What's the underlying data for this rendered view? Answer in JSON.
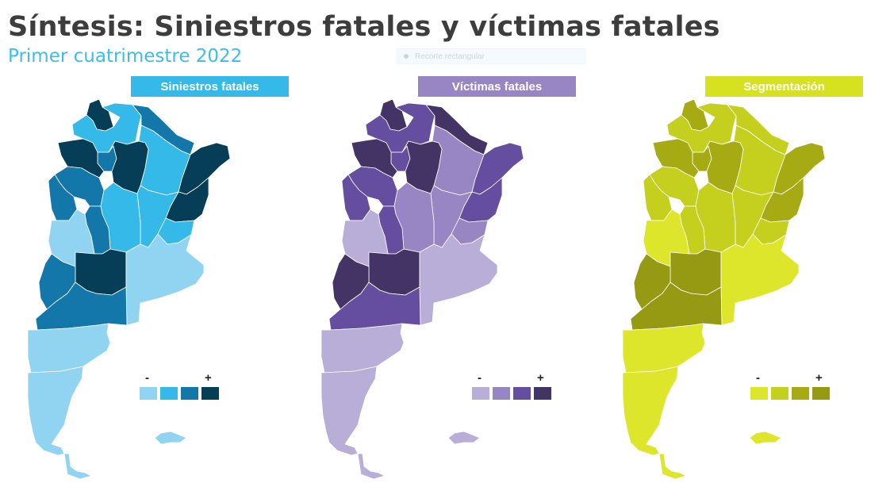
{
  "header": {
    "title": "Síntesis: Siniestros fatales y víctimas fatales",
    "subtitle": "Primer cuatrimestre 2022",
    "snip_label": "Recorte rectangular"
  },
  "panels": [
    {
      "label": "Siniestros fatales",
      "header_color": "#35b9e9",
      "palette": [
        "#90d4f1",
        "#35b9e9",
        "#1378a9",
        "#063e58"
      ],
      "legend_minus": "-",
      "legend_plus": "+"
    },
    {
      "label": "Víctimas fatales",
      "header_color": "#9886c4",
      "palette": [
        "#b8aed7",
        "#9886c4",
        "#654ea0",
        "#433465"
      ],
      "legend_minus": "-",
      "legend_plus": "+"
    },
    {
      "label": "Segmentación",
      "header_color": "#d6e11f",
      "palette": [
        "#dde62a",
        "#c4cf1e",
        "#a6ab14",
        "#969912"
      ],
      "legend_minus": "-",
      "legend_plus": "+"
    }
  ],
  "map_data": {
    "provinces": [
      {
        "name": "Jujuy",
        "levels": [
          3,
          3,
          2
        ]
      },
      {
        "name": "Salta",
        "levels": [
          1,
          2,
          1
        ]
      },
      {
        "name": "Formosa",
        "levels": [
          2,
          3,
          1
        ]
      },
      {
        "name": "Misiones",
        "levels": [
          3,
          2,
          2
        ]
      },
      {
        "name": "Chaco",
        "levels": [
          1,
          1,
          1
        ]
      },
      {
        "name": "Tucumán",
        "levels": [
          2,
          2,
          2
        ]
      },
      {
        "name": "Catamarca",
        "levels": [
          3,
          3,
          2
        ]
      },
      {
        "name": "Santiago del Estero",
        "levels": [
          3,
          3,
          2
        ]
      },
      {
        "name": "Corrientes",
        "levels": [
          3,
          2,
          2
        ]
      },
      {
        "name": "Santa Fe",
        "levels": [
          1,
          1,
          1
        ]
      },
      {
        "name": "La Rioja",
        "levels": [
          2,
          2,
          1
        ]
      },
      {
        "name": "San Juan",
        "levels": [
          2,
          2,
          1
        ]
      },
      {
        "name": "Córdoba",
        "levels": [
          1,
          1,
          1
        ]
      },
      {
        "name": "Entre Ríos",
        "levels": [
          1,
          1,
          1
        ]
      },
      {
        "name": "San Luis",
        "levels": [
          2,
          2,
          1
        ]
      },
      {
        "name": "Mendoza",
        "levels": [
          0,
          0,
          0
        ]
      },
      {
        "name": "La Pampa",
        "levels": [
          3,
          3,
          3
        ]
      },
      {
        "name": "Buenos Aires",
        "levels": [
          0,
          0,
          0
        ]
      },
      {
        "name": "Neuquén",
        "levels": [
          2,
          3,
          3
        ]
      },
      {
        "name": "Río Negro",
        "levels": [
          2,
          2,
          3
        ]
      },
      {
        "name": "Chubut",
        "levels": [
          0,
          0,
          0
        ]
      },
      {
        "name": "Santa Cruz",
        "levels": [
          0,
          0,
          0
        ]
      },
      {
        "name": "Tierra del Fuego",
        "levels": [
          0,
          0,
          0
        ]
      },
      {
        "name": "Islas Malvinas",
        "levels": [
          0,
          0,
          0
        ]
      }
    ]
  }
}
